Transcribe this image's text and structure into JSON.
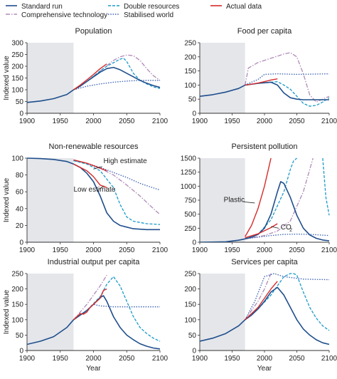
{
  "legend": {
    "items": [
      {
        "label": "Standard run",
        "color": "#1f4e8c",
        "dash": "solid"
      },
      {
        "label": "Double resources",
        "color": "#1b9ac9",
        "dash": "dash"
      },
      {
        "label": "Actual data",
        "color": "#d62b2b",
        "dash": "solid"
      },
      {
        "label": "Comprehensive technology",
        "color": "#b08ab8",
        "dash": "dashdot"
      },
      {
        "label": "Stabilised world",
        "color": "#3a5fb0",
        "dash": "dot"
      }
    ]
  },
  "shared": {
    "xlabel": "Year",
    "ylabel": "Indexed value",
    "x_ticks": [
      "1900",
      "1950",
      "2000",
      "2050",
      "2100"
    ],
    "x_tick_last_right": "2100",
    "shaded_region": [
      1900,
      1970
    ],
    "colors": {
      "standard": "#1f4e8c",
      "double": "#1b9ac9",
      "actual": "#d62b2b",
      "tech": "#b08ab8",
      "stable": "#3a5fb0",
      "shade": "#e4e6ea"
    }
  },
  "chart_data": [
    {
      "type": "line",
      "title": "Population",
      "xlim": [
        1900,
        2100
      ],
      "ylim": [
        0,
        300
      ],
      "y_ticks": [
        "0",
        "50",
        "100",
        "150",
        "200",
        "250",
        "300"
      ],
      "series": [
        {
          "name": "Standard run",
          "key": "standard",
          "x": [
            1900,
            1920,
            1940,
            1960,
            1970,
            1980,
            1990,
            2000,
            2010,
            2020,
            2030,
            2040,
            2050,
            2060,
            2070,
            2080,
            2090,
            2100
          ],
          "values": [
            46,
            52,
            62,
            80,
            100,
            115,
            135,
            155,
            175,
            190,
            195,
            185,
            170,
            155,
            140,
            128,
            118,
            110
          ]
        },
        {
          "name": "Double resources",
          "key": "double",
          "x": [
            1970,
            1990,
            2010,
            2020,
            2030,
            2040,
            2045,
            2050,
            2060,
            2070,
            2080,
            2090,
            2100
          ],
          "values": [
            100,
            135,
            180,
            200,
            215,
            230,
            235,
            220,
            170,
            140,
            125,
            112,
            105
          ]
        },
        {
          "name": "Actual data",
          "key": "actual",
          "x": [
            1970,
            1980,
            1990,
            2000,
            2010,
            2020
          ],
          "values": [
            100,
            120,
            142,
            165,
            190,
            210
          ]
        },
        {
          "name": "Comprehensive technology",
          "key": "tech",
          "x": [
            1970,
            1990,
            2010,
            2030,
            2040,
            2050,
            2060,
            2070,
            2080,
            2090,
            2100
          ],
          "values": [
            100,
            135,
            180,
            225,
            240,
            248,
            245,
            225,
            190,
            160,
            140
          ]
        },
        {
          "name": "Stabilised world",
          "key": "stable",
          "x": [
            1970,
            1990,
            2010,
            2030,
            2050,
            2070,
            2100
          ],
          "values": [
            100,
            115,
            125,
            132,
            137,
            140,
            140
          ]
        }
      ],
      "annotations": []
    },
    {
      "type": "line",
      "title": "Food per capita",
      "xlim": [
        1900,
        2100
      ],
      "ylim": [
        0,
        250
      ],
      "y_ticks": [
        "0",
        "50",
        "100",
        "150",
        "200",
        "250"
      ],
      "series": [
        {
          "name": "Standard run",
          "key": "standard",
          "x": [
            1900,
            1920,
            1940,
            1960,
            1970,
            1980,
            1990,
            2000,
            2010,
            2020,
            2030,
            2040,
            2050,
            2060,
            2080,
            2100
          ],
          "values": [
            60,
            66,
            75,
            88,
            100,
            103,
            106,
            108,
            110,
            100,
            72,
            55,
            50,
            48,
            48,
            48
          ]
        },
        {
          "name": "Double resources",
          "key": "double",
          "x": [
            1970,
            1990,
            2010,
            2020,
            2030,
            2040,
            2050,
            2060,
            2070,
            2080,
            2090,
            2100
          ],
          "values": [
            100,
            106,
            110,
            112,
            100,
            85,
            60,
            35,
            25,
            28,
            40,
            55
          ]
        },
        {
          "name": "Actual data",
          "key": "actual",
          "x": [
            1970,
            1980,
            1990,
            2000,
            2010,
            2020
          ],
          "values": [
            100,
            103,
            107,
            112,
            118,
            122
          ]
        },
        {
          "name": "Comprehensive technology",
          "key": "tech",
          "x": [
            1970,
            1975,
            1990,
            2010,
            2030,
            2040,
            2050,
            2060,
            2070,
            2080,
            2090,
            2100
          ],
          "values": [
            100,
            160,
            180,
            195,
            210,
            215,
            200,
            140,
            65,
            40,
            50,
            60
          ]
        },
        {
          "name": "Stabilised world",
          "key": "stable",
          "x": [
            1970,
            1980,
            1990,
            2000,
            2020,
            2050,
            2100
          ],
          "values": [
            100,
            110,
            120,
            138,
            140,
            138,
            140
          ]
        }
      ],
      "annotations": []
    },
    {
      "type": "line",
      "title": "Non-renewable resources",
      "xlim": [
        1900,
        2100
      ],
      "ylim": [
        0,
        100
      ],
      "y_ticks": [
        "0",
        "20",
        "40",
        "60",
        "80",
        "100"
      ],
      "series": [
        {
          "name": "Standard run",
          "key": "standard",
          "x": [
            1900,
            1920,
            1940,
            1960,
            1970,
            1980,
            1990,
            2000,
            2010,
            2020,
            2030,
            2040,
            2050,
            2060,
            2080,
            2100
          ],
          "values": [
            100,
            99.5,
            98.5,
            96,
            93,
            89,
            82,
            72,
            55,
            35,
            25,
            20,
            18,
            16,
            15,
            15
          ]
        },
        {
          "name": "Double resources",
          "key": "double",
          "x": [
            1970,
            1990,
            2010,
            2030,
            2040,
            2050,
            2060,
            2080,
            2100
          ],
          "values": [
            97,
            93,
            85,
            65,
            45,
            30,
            25,
            22,
            21
          ]
        },
        {
          "name": "Actual data",
          "key": "actual",
          "x": [
            1970,
            1990,
            2010,
            2020
          ],
          "values": [
            98,
            94,
            88,
            85
          ]
        },
        {
          "name": "Actual data (low)",
          "key": "actual",
          "x": [
            1970,
            1990,
            2000,
            2010,
            2020
          ],
          "values": [
            93,
            85,
            78,
            68,
            65
          ]
        },
        {
          "name": "Comprehensive technology",
          "key": "tech",
          "x": [
            1970,
            1990,
            2010,
            2030,
            2050,
            2070,
            2090,
            2100
          ],
          "values": [
            97,
            94,
            88,
            80,
            68,
            55,
            40,
            33
          ]
        },
        {
          "name": "Stabilised world",
          "key": "stable",
          "x": [
            1970,
            1990,
            2010,
            2030,
            2050,
            2070,
            2100
          ],
          "values": [
            97,
            94,
            89,
            83,
            77,
            70,
            62
          ]
        }
      ],
      "annotations": [
        {
          "text": "High estimate",
          "x": 2015,
          "y": 94,
          "anchor": "start",
          "lx1": 2013,
          "ly1": 90,
          "lx2": 2000,
          "ly2": 87
        },
        {
          "text": "Low estimate",
          "x": 1970,
          "y": 60,
          "anchor": "start",
          "lx1": 2008,
          "ly1": 63,
          "lx2": 2016,
          "ly2": 67
        }
      ]
    },
    {
      "type": "line",
      "title": "Persistent pollution",
      "xlim": [
        1900,
        2100
      ],
      "ylim": [
        0,
        1500
      ],
      "y_ticks": [
        "0",
        "250",
        "500",
        "750",
        "1000",
        "1250",
        "1500"
      ],
      "series": [
        {
          "name": "Standard run",
          "key": "standard",
          "x": [
            1900,
            1920,
            1940,
            1960,
            1970,
            1980,
            1990,
            2000,
            2010,
            2020,
            2025,
            2030,
            2040,
            2050,
            2060,
            2070,
            2080,
            2090,
            2100
          ],
          "values": [
            0,
            2,
            8,
            35,
            60,
            90,
            140,
            250,
            500,
            900,
            1080,
            1050,
            800,
            480,
            250,
            130,
            70,
            40,
            25
          ]
        },
        {
          "name": "Double resources",
          "key": "double",
          "x": [
            1970,
            1990,
            2010,
            2030,
            2040,
            2045,
            2050
          ],
          "values": [
            60,
            140,
            400,
            900,
            1300,
            1450,
            1500
          ]
        },
        {
          "name": "Actual data",
          "key": "actual",
          "x": [
            1970,
            1980,
            1990,
            2000,
            2010
          ],
          "values": [
            100,
            300,
            600,
            1000,
            1500
          ]
        },
        {
          "name": "Actual data",
          "key": "actual",
          "x": [
            1970,
            1990,
            2010,
            2020
          ],
          "values": [
            80,
            150,
            260,
            330
          ]
        },
        {
          "name": "Comprehensive technology",
          "key": "tech",
          "x": [
            1970,
            2000,
            2020,
            2040,
            2060,
            2070,
            2075
          ],
          "values": [
            60,
            120,
            200,
            380,
            900,
            1300,
            1500
          ]
        },
        {
          "name": "Stabilised world",
          "key": "stable",
          "x": [
            1970,
            1990,
            2010,
            2030,
            2050,
            2070,
            2100
          ],
          "values": [
            60,
            90,
            120,
            140,
            145,
            140,
            120
          ]
        },
        {
          "name": "Double resources",
          "key": "double",
          "x": [
            2090,
            2095,
            2100
          ],
          "values": [
            1500,
            800,
            480
          ]
        }
      ],
      "annotations": [
        {
          "text": "Plastic",
          "x": 1937,
          "y": 720,
          "anchor": "start",
          "lx1": 1968,
          "ly1": 720,
          "lx2": 1985,
          "ly2": 700
        },
        {
          "text": "CO",
          "sub": "2",
          "x": 2025,
          "y": 230,
          "anchor": "start",
          "lx1": 2022,
          "ly1": 250,
          "lx2": 2010,
          "ly2": 280
        }
      ]
    },
    {
      "type": "line",
      "title": "Industrial output per capita",
      "xlim": [
        1900,
        2100
      ],
      "ylim": [
        0,
        250
      ],
      "y_ticks": [
        "0",
        "50",
        "100",
        "150",
        "200",
        "250"
      ],
      "series": [
        {
          "name": "Standard run",
          "key": "standard",
          "x": [
            1900,
            1920,
            1940,
            1960,
            1970,
            1980,
            1990,
            2000,
            2010,
            2015,
            2020,
            2030,
            2040,
            2050,
            2060,
            2070,
            2080,
            2090,
            2100
          ],
          "values": [
            20,
            30,
            45,
            75,
            100,
            115,
            130,
            150,
            172,
            178,
            160,
            110,
            75,
            50,
            35,
            22,
            14,
            8,
            5
          ]
        },
        {
          "name": "Double resources",
          "key": "double",
          "x": [
            1970,
            1990,
            2010,
            2020,
            2030,
            2040,
            2050,
            2060,
            2070,
            2080,
            2090,
            2100
          ],
          "values": [
            100,
            130,
            175,
            215,
            240,
            210,
            160,
            110,
            75,
            55,
            40,
            30
          ]
        },
        {
          "name": "Actual data",
          "key": "actual",
          "x": [
            1970,
            1980,
            1985,
            1990,
            1995,
            2000,
            2005,
            2010,
            2015,
            2020
          ],
          "values": [
            100,
            120,
            118,
            125,
            140,
            150,
            160,
            170,
            195,
            200
          ]
        },
        {
          "name": "Comprehensive technology",
          "key": "tech",
          "x": [
            1970,
            1990,
            2000,
            2010,
            2020
          ],
          "values": [
            100,
            150,
            180,
            210,
            245
          ]
        },
        {
          "name": "Stabilised world",
          "key": "stable",
          "x": [
            1970,
            1990,
            2000,
            2010,
            2030,
            2060,
            2100
          ],
          "values": [
            100,
            130,
            150,
            145,
            142,
            142,
            142
          ]
        }
      ],
      "annotations": []
    },
    {
      "type": "line",
      "title": "Services per capita",
      "xlim": [
        1900,
        2100
      ],
      "ylim": [
        0,
        250
      ],
      "y_ticks": [
        "0",
        "50",
        "100",
        "150",
        "200",
        "250"
      ],
      "series": [
        {
          "name": "Standard run",
          "key": "standard",
          "x": [
            1900,
            1920,
            1940,
            1960,
            1970,
            1980,
            1990,
            2000,
            2010,
            2020,
            2030,
            2040,
            2050,
            2060,
            2070,
            2080,
            2090,
            2100
          ],
          "values": [
            30,
            40,
            55,
            80,
            100,
            115,
            135,
            160,
            190,
            205,
            180,
            140,
            100,
            70,
            50,
            35,
            25,
            20
          ]
        },
        {
          "name": "Double resources",
          "key": "double",
          "x": [
            1970,
            1990,
            2010,
            2020,
            2030,
            2040,
            2045,
            2050,
            2060,
            2070,
            2080,
            2090,
            2100
          ],
          "values": [
            100,
            135,
            180,
            210,
            240,
            260,
            265,
            245,
            190,
            140,
            105,
            80,
            65
          ]
        },
        {
          "name": "Actual data",
          "key": "actual",
          "x": [
            1970,
            1980,
            1990,
            2000,
            2010,
            2020
          ],
          "values": [
            100,
            120,
            140,
            170,
            200,
            225
          ]
        },
        {
          "name": "Comprehensive technology",
          "key": "tech",
          "x": [
            1970,
            1990,
            2000,
            2010
          ],
          "values": [
            100,
            160,
            200,
            250
          ]
        },
        {
          "name": "Stabilised world",
          "key": "stable",
          "x": [
            1970,
            1985,
            2000,
            2015,
            2030,
            2060,
            2100
          ],
          "values": [
            100,
            160,
            240,
            255,
            240,
            232,
            230
          ]
        }
      ],
      "annotations": []
    }
  ]
}
